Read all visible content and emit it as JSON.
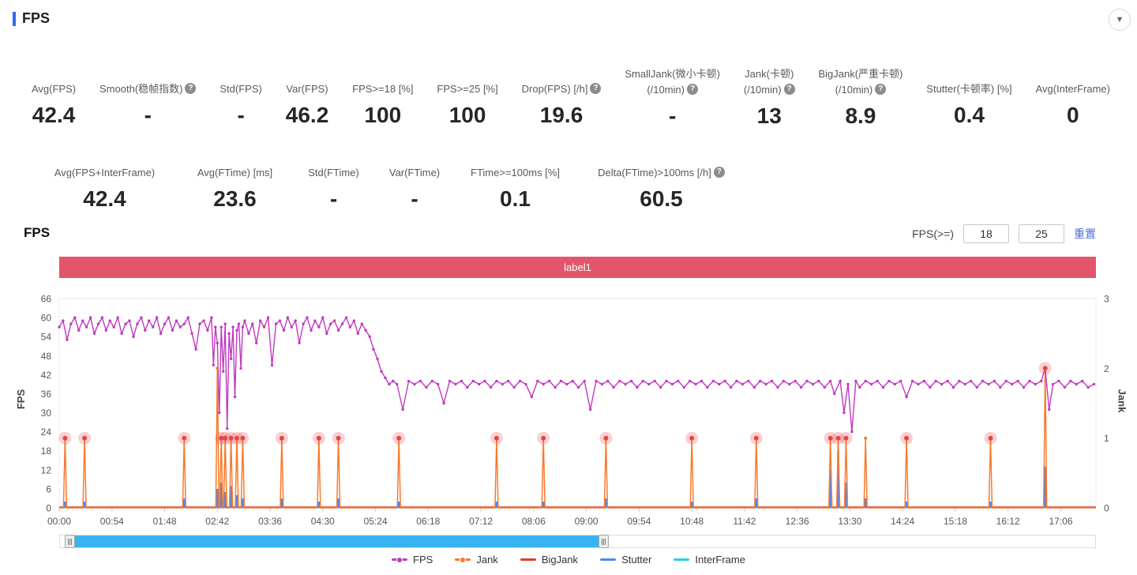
{
  "header": {
    "title": "FPS",
    "collapse_icon": "▼"
  },
  "colors": {
    "accent": "#2e6bf0",
    "banner": "#e2556a",
    "datazoom_fill": "#38b3f0",
    "link": "#4a6edb",
    "bigjank_halo": "rgba(232,72,72,0.25)",
    "bigjank_dot": "#e04848"
  },
  "metrics_row1": [
    {
      "line1": "Avg(FPS)",
      "line2": null,
      "help": null,
      "value": "42.4"
    },
    {
      "line1": "Smooth(稳帧指数)",
      "line2": null,
      "help": "l1",
      "value": "-"
    },
    {
      "line1": "Std(FPS)",
      "line2": null,
      "help": null,
      "value": "-"
    },
    {
      "line1": "Var(FPS)",
      "line2": null,
      "help": null,
      "value": "46.2"
    },
    {
      "line1": "FPS>=18 [%]",
      "line2": null,
      "help": null,
      "value": "100"
    },
    {
      "line1": "FPS>=25 [%]",
      "line2": null,
      "help": null,
      "value": "100"
    },
    {
      "line1": "Drop(FPS) [/h]",
      "line2": null,
      "help": "l1",
      "value": "19.6"
    },
    {
      "line1": "SmallJank(微小卡顿)",
      "line2": "(/10min)",
      "help": "l2",
      "value": "-"
    },
    {
      "line1": "Jank(卡顿)",
      "line2": "(/10min)",
      "help": "l2",
      "value": "13"
    },
    {
      "line1": "BigJank(严重卡顿)",
      "line2": "(/10min)",
      "help": "l2",
      "value": "8.9"
    },
    {
      "line1": "Stutter(卡顿率) [%]",
      "line2": null,
      "help": null,
      "value": "0.4"
    },
    {
      "line1": "Avg(InterFrame)",
      "line2": null,
      "help": null,
      "value": "0"
    }
  ],
  "metrics_row2": [
    {
      "line1": "Avg(FPS+InterFrame)",
      "line2": null,
      "help": null,
      "value": "42.4"
    },
    {
      "line1": "Avg(FTime) [ms]",
      "line2": null,
      "help": null,
      "value": "23.6"
    },
    {
      "line1": "Std(FTime)",
      "line2": null,
      "help": null,
      "value": "-"
    },
    {
      "line1": "Var(FTime)",
      "line2": null,
      "help": null,
      "value": "-"
    },
    {
      "line1": "FTime>=100ms [%]",
      "line2": null,
      "help": null,
      "value": "0.1"
    },
    {
      "line1": "Delta(FTime)>100ms [/h]",
      "line2": null,
      "help": "l1",
      "value": "60.5"
    }
  ],
  "controls": {
    "filter_label": "FPS(>=)",
    "low": "18",
    "high": "25",
    "reset_label": "重置"
  },
  "datazoom": {
    "start_pct": 0.9,
    "end_pct": 52.5
  },
  "legend": [
    {
      "label": "FPS",
      "color": "#c03ac0",
      "dot": true
    },
    {
      "label": "Jank",
      "color": "#f87a2c",
      "dot": true
    },
    {
      "label": "BigJank",
      "color": "#dd3c30",
      "dot": false
    },
    {
      "label": "Stutter",
      "color": "#4f87ee",
      "dot": false
    },
    {
      "label": "InterFrame",
      "color": "#30c9e8",
      "dot": false
    }
  ],
  "chart_data": {
    "type": "line",
    "title": "FPS",
    "banner_label": "label1",
    "left_axis": {
      "label": "FPS",
      "min": 0,
      "max": 66,
      "ticks": [
        0,
        6,
        12,
        18,
        24,
        30,
        36,
        42,
        48,
        54,
        60,
        66
      ]
    },
    "right_axis": {
      "label": "Jank",
      "min": 0,
      "max": 3,
      "ticks": [
        0,
        1,
        2,
        3
      ]
    },
    "x_ticks": [
      "00:00",
      "00:54",
      "01:48",
      "02:42",
      "03:36",
      "04:30",
      "05:24",
      "06:18",
      "07:12",
      "08:06",
      "09:00",
      "09:54",
      "10:48",
      "11:42",
      "12:36",
      "13:30",
      "14:24",
      "15:18",
      "16:12",
      "17:06"
    ],
    "x_max_seconds": 1062,
    "grid": false,
    "legend_position": "bottom",
    "series": {
      "fps": {
        "color": "#c03ac0",
        "points": [
          [
            0,
            57
          ],
          [
            4,
            59
          ],
          [
            8,
            53
          ],
          [
            12,
            58
          ],
          [
            16,
            60
          ],
          [
            20,
            56
          ],
          [
            24,
            59
          ],
          [
            28,
            57
          ],
          [
            32,
            60
          ],
          [
            36,
            55
          ],
          [
            40,
            58
          ],
          [
            44,
            60
          ],
          [
            48,
            56
          ],
          [
            52,
            59
          ],
          [
            56,
            57
          ],
          [
            60,
            60
          ],
          [
            64,
            55
          ],
          [
            68,
            58
          ],
          [
            72,
            59
          ],
          [
            76,
            54
          ],
          [
            80,
            58
          ],
          [
            84,
            60
          ],
          [
            88,
            56
          ],
          [
            92,
            59
          ],
          [
            96,
            57
          ],
          [
            100,
            60
          ],
          [
            104,
            55
          ],
          [
            108,
            58
          ],
          [
            112,
            60
          ],
          [
            116,
            56
          ],
          [
            120,
            59
          ],
          [
            124,
            57
          ],
          [
            128,
            58
          ],
          [
            132,
            60
          ],
          [
            136,
            55
          ],
          [
            140,
            50
          ],
          [
            144,
            58
          ],
          [
            148,
            59
          ],
          [
            152,
            56
          ],
          [
            156,
            60
          ],
          [
            158,
            45
          ],
          [
            160,
            57
          ],
          [
            162,
            52
          ],
          [
            164,
            30
          ],
          [
            166,
            57
          ],
          [
            168,
            43
          ],
          [
            170,
            58
          ],
          [
            172,
            25
          ],
          [
            174,
            55
          ],
          [
            176,
            47
          ],
          [
            178,
            57
          ],
          [
            180,
            35
          ],
          [
            182,
            56
          ],
          [
            184,
            58
          ],
          [
            186,
            44
          ],
          [
            188,
            57
          ],
          [
            190,
            59
          ],
          [
            194,
            55
          ],
          [
            198,
            58
          ],
          [
            202,
            52
          ],
          [
            206,
            59
          ],
          [
            210,
            57
          ],
          [
            214,
            60
          ],
          [
            218,
            45
          ],
          [
            222,
            58
          ],
          [
            226,
            59
          ],
          [
            230,
            56
          ],
          [
            234,
            60
          ],
          [
            238,
            57
          ],
          [
            242,
            59
          ],
          [
            246,
            52
          ],
          [
            250,
            58
          ],
          [
            254,
            60
          ],
          [
            258,
            56
          ],
          [
            262,
            59
          ],
          [
            266,
            57
          ],
          [
            270,
            60
          ],
          [
            274,
            55
          ],
          [
            278,
            58
          ],
          [
            282,
            59
          ],
          [
            286,
            56
          ],
          [
            290,
            58
          ],
          [
            294,
            60
          ],
          [
            298,
            57
          ],
          [
            302,
            59
          ],
          [
            306,
            55
          ],
          [
            310,
            58
          ],
          [
            314,
            56
          ],
          [
            318,
            54
          ],
          [
            322,
            50
          ],
          [
            326,
            47
          ],
          [
            330,
            43
          ],
          [
            334,
            41
          ],
          [
            338,
            39
          ],
          [
            342,
            40
          ],
          [
            346,
            39
          ],
          [
            352,
            31
          ],
          [
            358,
            40
          ],
          [
            364,
            39
          ],
          [
            370,
            40
          ],
          [
            376,
            38
          ],
          [
            382,
            40
          ],
          [
            388,
            39
          ],
          [
            394,
            33
          ],
          [
            400,
            40
          ],
          [
            406,
            39
          ],
          [
            412,
            40
          ],
          [
            418,
            38
          ],
          [
            424,
            40
          ],
          [
            430,
            39
          ],
          [
            436,
            40
          ],
          [
            442,
            38
          ],
          [
            448,
            40
          ],
          [
            454,
            39
          ],
          [
            460,
            40
          ],
          [
            466,
            38
          ],
          [
            472,
            40
          ],
          [
            478,
            39
          ],
          [
            484,
            35
          ],
          [
            490,
            40
          ],
          [
            496,
            39
          ],
          [
            502,
            40
          ],
          [
            508,
            38
          ],
          [
            514,
            40
          ],
          [
            520,
            39
          ],
          [
            526,
            40
          ],
          [
            532,
            38
          ],
          [
            538,
            40
          ],
          [
            544,
            31
          ],
          [
            550,
            40
          ],
          [
            556,
            39
          ],
          [
            562,
            40
          ],
          [
            568,
            38
          ],
          [
            574,
            40
          ],
          [
            580,
            39
          ],
          [
            586,
            40
          ],
          [
            592,
            38
          ],
          [
            598,
            40
          ],
          [
            604,
            39
          ],
          [
            610,
            40
          ],
          [
            616,
            38
          ],
          [
            622,
            40
          ],
          [
            628,
            39
          ],
          [
            634,
            40
          ],
          [
            640,
            38
          ],
          [
            646,
            40
          ],
          [
            652,
            39
          ],
          [
            658,
            40
          ],
          [
            664,
            38
          ],
          [
            670,
            40
          ],
          [
            676,
            39
          ],
          [
            682,
            40
          ],
          [
            688,
            38
          ],
          [
            694,
            40
          ],
          [
            700,
            39
          ],
          [
            706,
            40
          ],
          [
            712,
            38
          ],
          [
            718,
            40
          ],
          [
            724,
            39
          ],
          [
            730,
            40
          ],
          [
            736,
            38
          ],
          [
            742,
            40
          ],
          [
            748,
            39
          ],
          [
            754,
            40
          ],
          [
            760,
            38
          ],
          [
            766,
            40
          ],
          [
            772,
            39
          ],
          [
            778,
            40
          ],
          [
            784,
            38
          ],
          [
            790,
            40
          ],
          [
            794,
            36
          ],
          [
            800,
            40
          ],
          [
            804,
            30
          ],
          [
            808,
            39
          ],
          [
            812,
            24
          ],
          [
            816,
            40
          ],
          [
            820,
            38
          ],
          [
            826,
            40
          ],
          [
            832,
            39
          ],
          [
            838,
            40
          ],
          [
            844,
            38
          ],
          [
            850,
            40
          ],
          [
            856,
            39
          ],
          [
            862,
            40
          ],
          [
            868,
            35
          ],
          [
            874,
            40
          ],
          [
            880,
            39
          ],
          [
            886,
            40
          ],
          [
            892,
            38
          ],
          [
            898,
            40
          ],
          [
            904,
            39
          ],
          [
            910,
            40
          ],
          [
            916,
            38
          ],
          [
            922,
            40
          ],
          [
            928,
            39
          ],
          [
            934,
            40
          ],
          [
            940,
            38
          ],
          [
            946,
            40
          ],
          [
            952,
            39
          ],
          [
            958,
            40
          ],
          [
            964,
            38
          ],
          [
            970,
            40
          ],
          [
            976,
            39
          ],
          [
            982,
            40
          ],
          [
            988,
            38
          ],
          [
            994,
            40
          ],
          [
            1000,
            39
          ],
          [
            1006,
            40
          ],
          [
            1010,
            44
          ],
          [
            1014,
            31
          ],
          [
            1018,
            39
          ],
          [
            1024,
            40
          ],
          [
            1030,
            38
          ],
          [
            1036,
            40
          ],
          [
            1042,
            39
          ],
          [
            1048,
            40
          ],
          [
            1054,
            38
          ],
          [
            1060,
            39
          ]
        ]
      },
      "jank": {
        "color": "#f87a2c",
        "events": [
          [
            6,
            1
          ],
          [
            26,
            1
          ],
          [
            128,
            1
          ],
          [
            162,
            2
          ],
          [
            166,
            1
          ],
          [
            170,
            1
          ],
          [
            176,
            1
          ],
          [
            182,
            1
          ],
          [
            188,
            1
          ],
          [
            228,
            1
          ],
          [
            266,
            1
          ],
          [
            286,
            1
          ],
          [
            348,
            1
          ],
          [
            448,
            1
          ],
          [
            496,
            1
          ],
          [
            560,
            1
          ],
          [
            648,
            1
          ],
          [
            714,
            1
          ],
          [
            790,
            1
          ],
          [
            798,
            1
          ],
          [
            806,
            1
          ],
          [
            826,
            1
          ],
          [
            868,
            1
          ],
          [
            954,
            1
          ],
          [
            1010,
            2
          ]
        ]
      },
      "bigjank": {
        "color": "#dd3c30",
        "times": [
          6,
          26,
          128,
          166,
          170,
          176,
          182,
          188,
          228,
          266,
          286,
          348,
          448,
          496,
          560,
          648,
          714,
          790,
          798,
          806,
          868,
          954,
          1010
        ]
      },
      "stutter": {
        "color": "#4f87ee",
        "bars": [
          [
            6,
            2
          ],
          [
            26,
            2
          ],
          [
            128,
            3
          ],
          [
            162,
            6
          ],
          [
            166,
            8
          ],
          [
            170,
            5
          ],
          [
            176,
            7
          ],
          [
            182,
            4
          ],
          [
            188,
            3
          ],
          [
            228,
            3
          ],
          [
            266,
            2
          ],
          [
            286,
            3
          ],
          [
            348,
            2
          ],
          [
            448,
            2
          ],
          [
            496,
            2
          ],
          [
            560,
            3
          ],
          [
            648,
            2
          ],
          [
            714,
            3
          ],
          [
            790,
            12
          ],
          [
            798,
            18
          ],
          [
            806,
            8
          ],
          [
            826,
            3
          ],
          [
            868,
            2
          ],
          [
            954,
            2
          ],
          [
            1010,
            13
          ]
        ]
      },
      "interframe": {
        "color": "#30c9e8",
        "value": 0
      }
    }
  }
}
